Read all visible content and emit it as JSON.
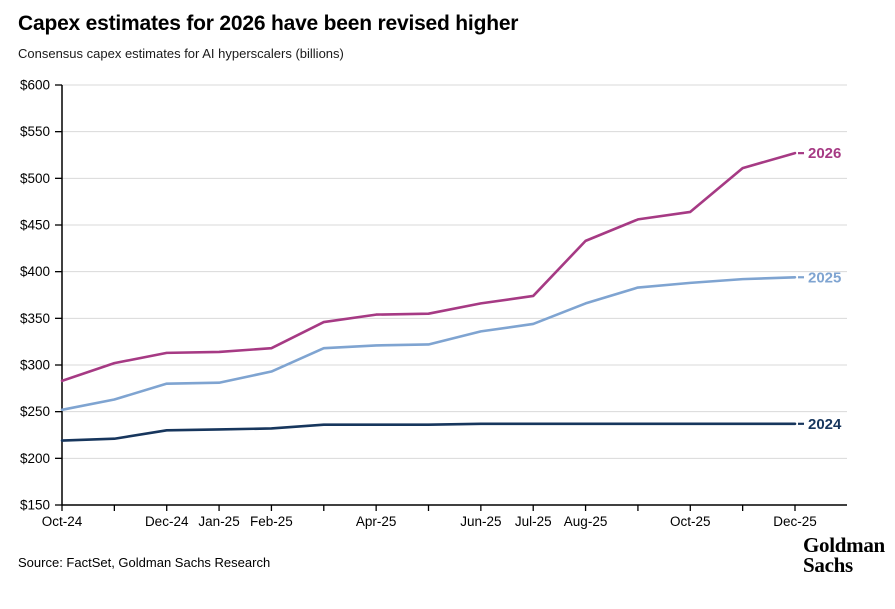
{
  "header": {
    "title": "Capex estimates for 2026 have been revised higher",
    "subtitle": "Consensus capex estimates for AI hyperscalers (billions)"
  },
  "footer": {
    "source": "Source: FactSet, Goldman Sachs Research",
    "logo_line1": "Goldman",
    "logo_line2": "Sachs"
  },
  "chart_data": {
    "type": "line",
    "title": "Capex estimates for 2026 have been revised higher",
    "subtitle": "Consensus capex estimates for AI hyperscalers (billions)",
    "x": [
      "Oct-24",
      "Nov-24",
      "Dec-24",
      "Jan-25",
      "Feb-25",
      "Mar-25",
      "Apr-25",
      "May-25",
      "Jun-25",
      "Jul-25",
      "Aug-25",
      "Sep-25",
      "Oct-25",
      "Nov-25",
      "Dec-25"
    ],
    "x_tick_labels": [
      "Oct-24",
      "",
      "Dec-24",
      "Jan-25",
      "Feb-25",
      "",
      "Apr-25",
      "",
      "Jun-25",
      "Jul-25",
      "Aug-25",
      "",
      "Oct-25",
      "",
      "Dec-25"
    ],
    "series": [
      {
        "name": "2026",
        "color": "#A63A84",
        "values": [
          283,
          302,
          313,
          314,
          318,
          346,
          354,
          355,
          366,
          374,
          433,
          456,
          464,
          511,
          527
        ]
      },
      {
        "name": "2025",
        "color": "#7FA4D1",
        "values": [
          252,
          263,
          280,
          281,
          293,
          318,
          321,
          322,
          336,
          344,
          366,
          383,
          388,
          392,
          394
        ]
      },
      {
        "name": "2024",
        "color": "#17365D",
        "values": [
          219,
          221,
          230,
          231,
          232,
          236,
          236,
          236,
          237,
          237,
          237,
          237,
          237,
          237,
          237
        ]
      }
    ],
    "ylim": [
      150,
      600
    ],
    "ytick_step": 50,
    "y_tick_prefix": "$",
    "grid": true,
    "legend_position": "line-end-labels",
    "grid_color": "#D9D9D9",
    "axis_color": "#000000",
    "tick_label_color": "#000000"
  }
}
